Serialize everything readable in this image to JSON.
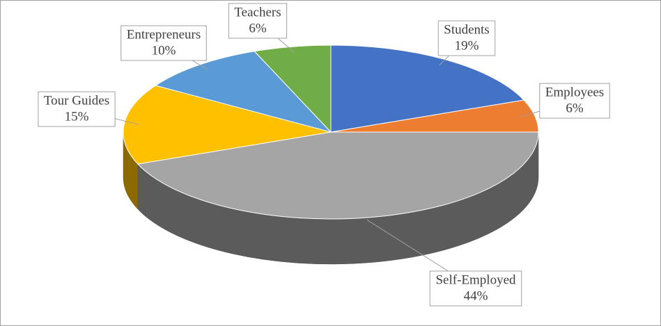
{
  "chart_data": {
    "type": "pie",
    "categories": [
      "Students",
      "Employees",
      "Self-Employed",
      "Tour Guides",
      "Entrepreneurs",
      "Teachers"
    ],
    "values": [
      19,
      6,
      44,
      15,
      10,
      6
    ],
    "value_labels": [
      "19%",
      "6%",
      "44%",
      "15%",
      "10%",
      "6%"
    ],
    "colors": [
      "#4472c4",
      "#ed7d31",
      "#a5a5a5",
      "#ffc000",
      "#5b9bd5",
      "#70ad47"
    ]
  }
}
